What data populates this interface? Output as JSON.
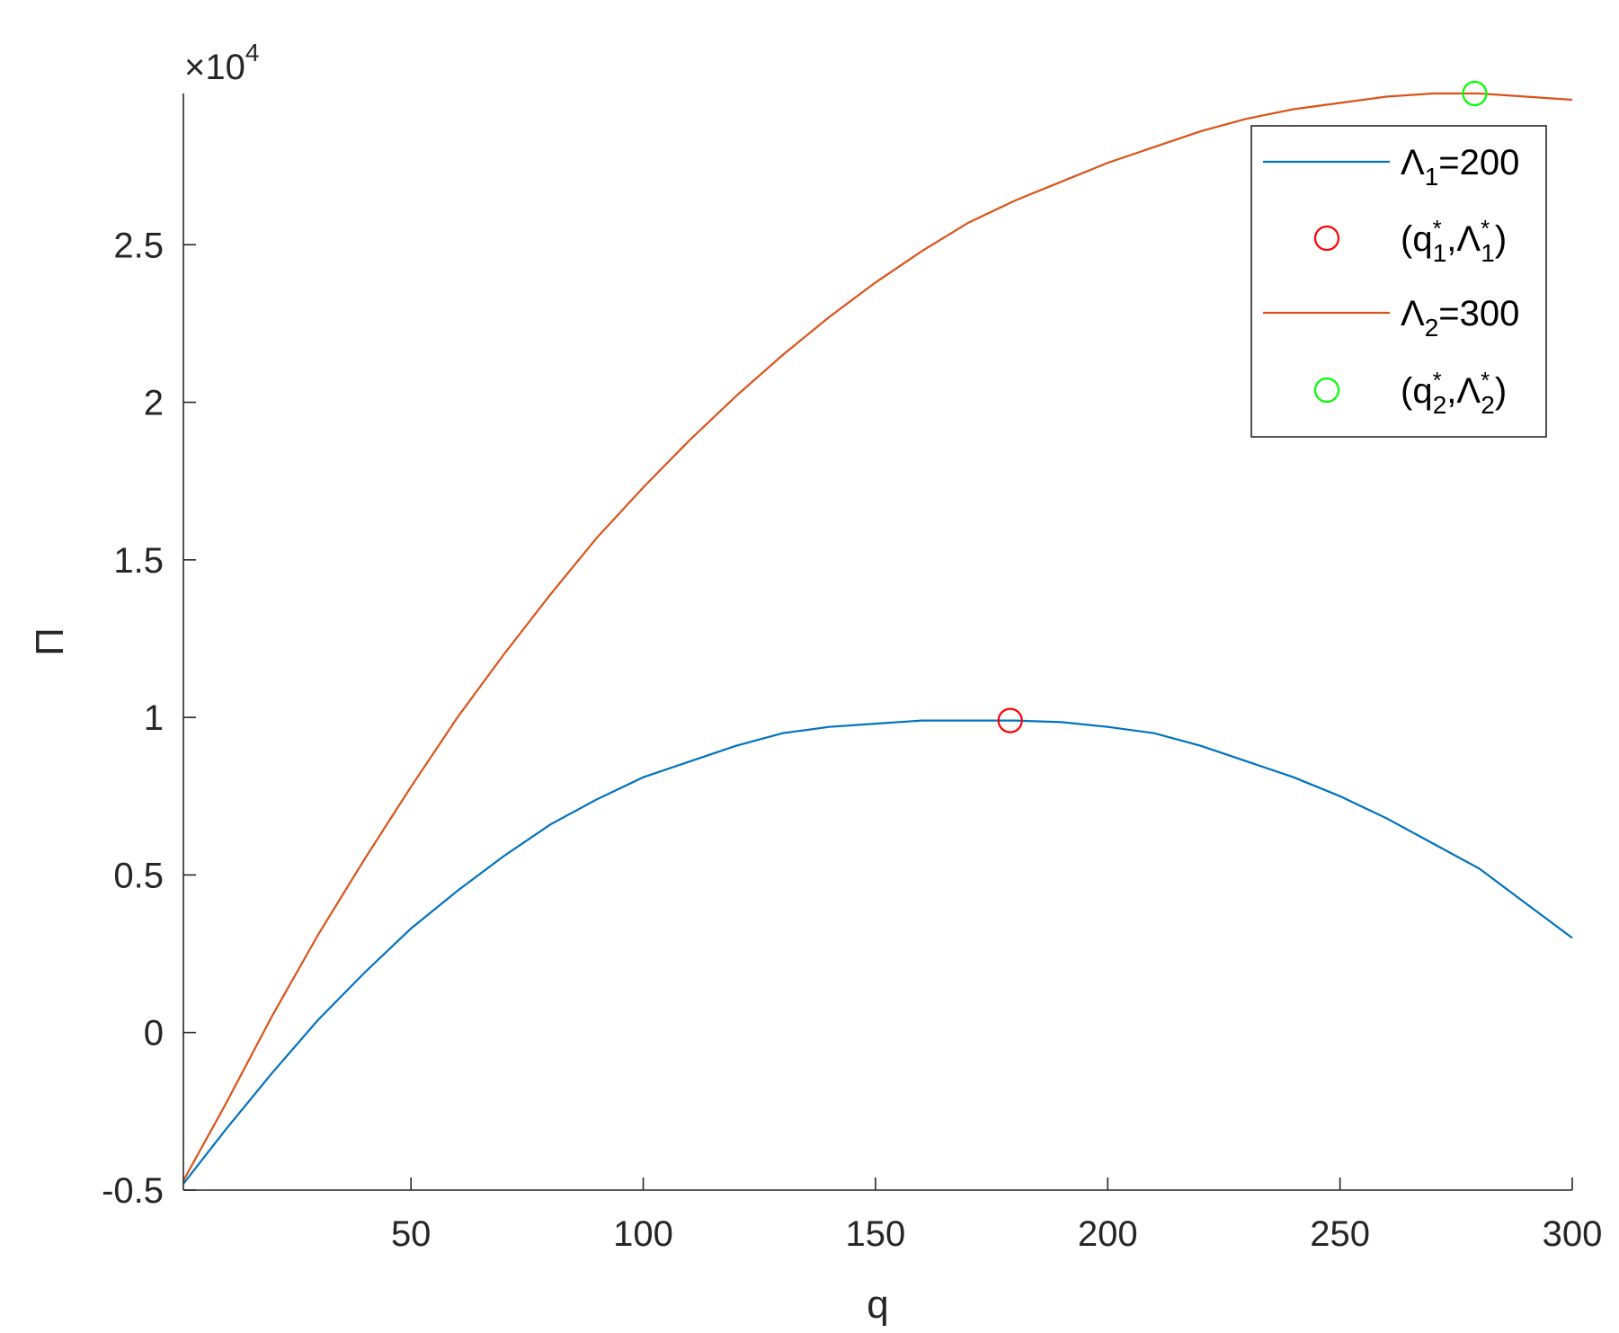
{
  "chart_data": {
    "type": "line",
    "xlabel": "q",
    "ylabel": "Π",
    "xlim": [
      1,
      300
    ],
    "ylim": [
      -0.5,
      2.98
    ],
    "y_multiplier": {
      "base": "×10",
      "exponent": "4"
    },
    "xticks": [
      50,
      100,
      150,
      200,
      250,
      300
    ],
    "xtick_labels": [
      "50",
      "100",
      "150",
      "200",
      "250",
      "300"
    ],
    "yticks": [
      -0.5,
      0,
      0.5,
      1,
      1.5,
      2,
      2.5
    ],
    "ytick_labels": [
      "-0.5",
      "0",
      "0.5",
      "1",
      "1.5",
      "2",
      "2.5"
    ],
    "grid": false,
    "legend_position": "top-right",
    "series": [
      {
        "name": "Λ1=200",
        "legend": {
          "base": "Λ",
          "sub": "1",
          "suffix": "=200"
        },
        "color": "#0072BD",
        "x": [
          1,
          10,
          20,
          30,
          40,
          50,
          60,
          70,
          80,
          90,
          100,
          110,
          120,
          130,
          140,
          150,
          160,
          170,
          180,
          190,
          200,
          210,
          220,
          230,
          240,
          250,
          260,
          270,
          280,
          290,
          300
        ],
        "values": [
          -0.48,
          -0.31,
          -0.13,
          0.04,
          0.19,
          0.33,
          0.45,
          0.56,
          0.66,
          0.74,
          0.81,
          0.86,
          0.91,
          0.95,
          0.97,
          0.98,
          0.99,
          0.99,
          0.99,
          0.985,
          0.97,
          0.95,
          0.91,
          0.86,
          0.81,
          0.75,
          0.68,
          0.6,
          0.52,
          0.41,
          0.3
        ]
      },
      {
        "name": "Λ2=300",
        "legend": {
          "base": "Λ",
          "sub": "2",
          "suffix": "=300"
        },
        "color": "#D95319",
        "x": [
          1,
          10,
          20,
          30,
          40,
          50,
          60,
          70,
          80,
          90,
          100,
          110,
          120,
          130,
          140,
          150,
          160,
          170,
          180,
          190,
          200,
          210,
          220,
          230,
          240,
          250,
          260,
          270,
          280,
          290,
          300
        ],
        "values": [
          -0.47,
          -0.23,
          0.05,
          0.31,
          0.55,
          0.78,
          1.0,
          1.2,
          1.39,
          1.57,
          1.73,
          1.88,
          2.02,
          2.15,
          2.27,
          2.38,
          2.48,
          2.57,
          2.64,
          2.7,
          2.76,
          2.81,
          2.86,
          2.9,
          2.93,
          2.95,
          2.97,
          2.98,
          2.98,
          2.97,
          2.96
        ]
      }
    ],
    "markers": [
      {
        "name": "(q1*,Λ1*)",
        "legend": {
          "q_sub": "1",
          "lam_sub": "1"
        },
        "x": 179,
        "y": 0.99,
        "color": "#FF0000"
      },
      {
        "name": "(q2*,Λ2*)",
        "legend": {
          "q_sub": "2",
          "lam_sub": "2"
        },
        "x": 279,
        "y": 2.98,
        "color": "#00FF00"
      }
    ]
  }
}
